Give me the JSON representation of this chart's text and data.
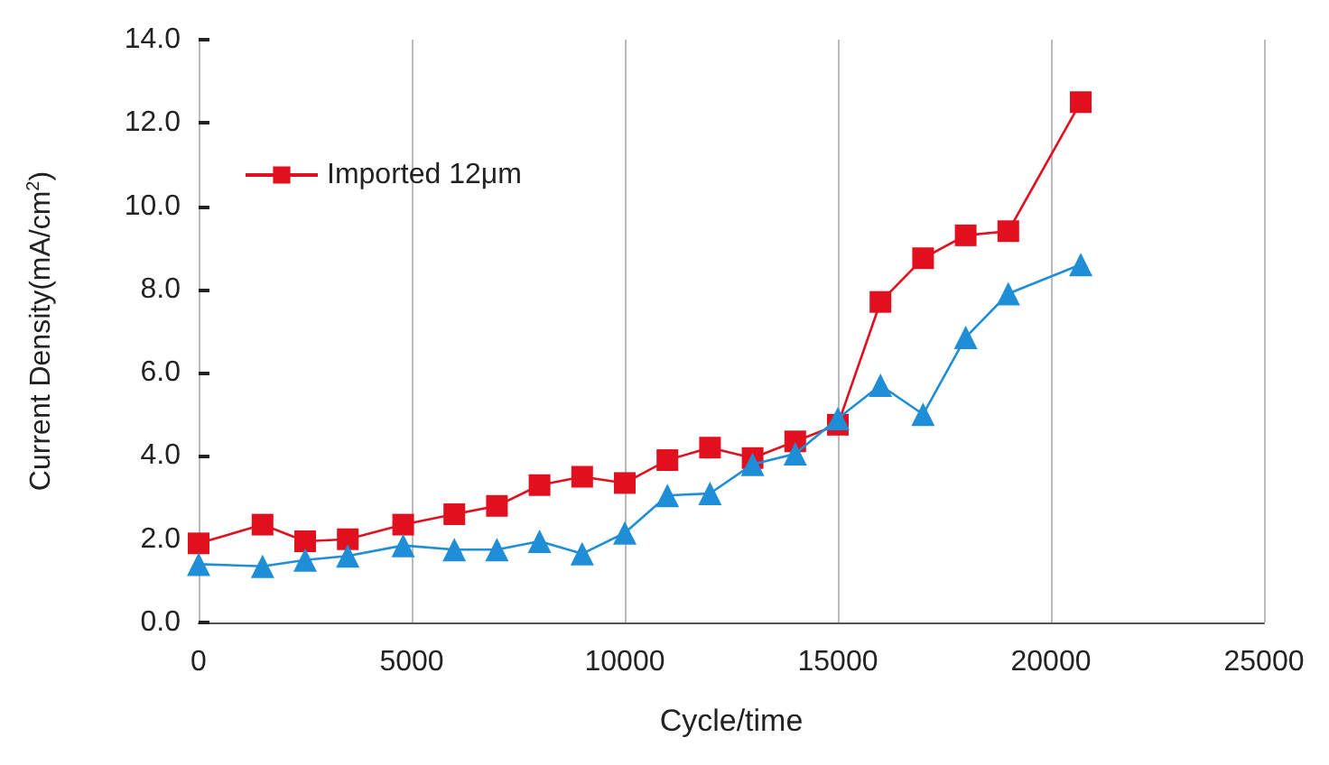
{
  "chart_data": {
    "type": "line",
    "xlabel": "Cycle/time",
    "ylabel": "Current Density(mA/cm$^{2}$)",
    "xlim": [
      0,
      25000
    ],
    "xticks": [
      0,
      5000,
      10000,
      15000,
      20000,
      25000
    ],
    "ylim": [
      0,
      14
    ],
    "yticks": [
      {
        "value": 0,
        "label": "0.0"
      },
      {
        "value": 2,
        "label": "2.0"
      },
      {
        "value": 4,
        "label": "4.0"
      },
      {
        "value": 6,
        "label": "6.0"
      },
      {
        "value": 8,
        "label": "8.0"
      },
      {
        "value": 10,
        "label": "10.0"
      },
      {
        "value": 12,
        "label": "12.0"
      },
      {
        "value": 14,
        "label": "14.0"
      }
    ],
    "grid": "x",
    "legend": "top left",
    "series": [
      {
        "color": "#1e8fd6",
        "marker": "triangle",
        "x": [
          0,
          1500,
          2500,
          3500,
          4800,
          6000,
          7000,
          8000,
          9000,
          10000,
          11000,
          12000,
          13000,
          14000,
          15000,
          16000,
          17000,
          18000,
          19000,
          20700
        ],
        "values": [
          1.4,
          1.35,
          1.5,
          1.6,
          1.85,
          1.75,
          1.75,
          1.95,
          1.65,
          2.15,
          3.05,
          3.1,
          3.8,
          4.05,
          4.9,
          5.7,
          5.0,
          6.85,
          7.9,
          8.6
        ]
      },
      {
        "name": "Imported 12μm",
        "color": "#e0101e",
        "marker": "square",
        "x": [
          0,
          1500,
          2500,
          3500,
          4800,
          6000,
          7000,
          8000,
          9000,
          10000,
          11000,
          12000,
          13000,
          14000,
          15000,
          16000,
          17000,
          18000,
          19000,
          20700
        ],
        "values": [
          1.9,
          2.35,
          1.95,
          2.0,
          2.35,
          2.6,
          2.8,
          3.3,
          3.5,
          3.35,
          3.9,
          4.2,
          3.95,
          4.35,
          4.75,
          7.7,
          8.75,
          9.3,
          9.4,
          12.5
        ]
      }
    ]
  }
}
